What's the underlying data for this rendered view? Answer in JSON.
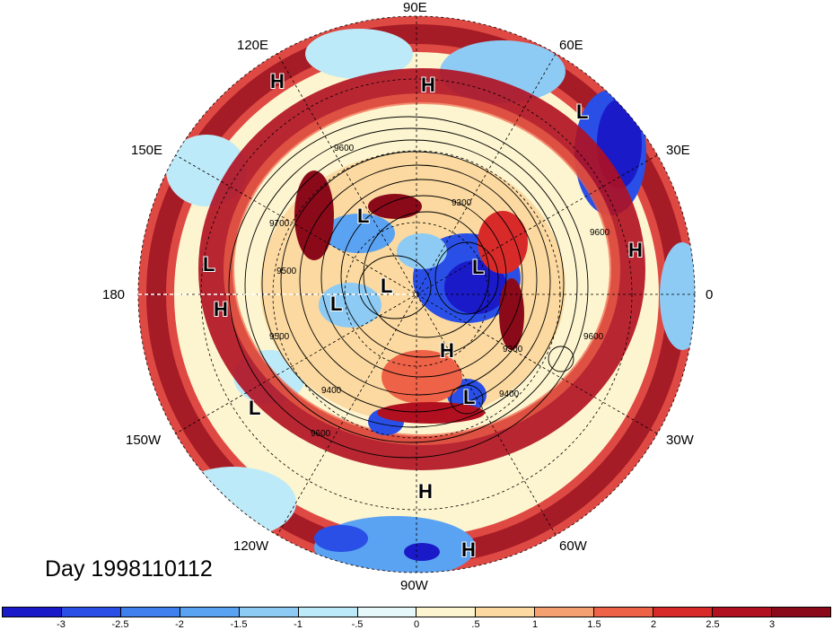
{
  "title": "Day 1998110112",
  "longitude_labels": [
    "90E",
    "60E",
    "30E",
    "0",
    "30W",
    "60W",
    "90W",
    "120W",
    "150W",
    "180",
    "150E",
    "120E"
  ],
  "pressure_systems": [
    {
      "label": "H"
    },
    {
      "label": "H"
    },
    {
      "label": "L"
    },
    {
      "label": "L"
    },
    {
      "label": "H"
    },
    {
      "label": "L"
    },
    {
      "label": "H"
    },
    {
      "label": "L"
    },
    {
      "label": "L"
    },
    {
      "label": "L"
    },
    {
      "label": "L"
    },
    {
      "label": "H"
    },
    {
      "label": "L"
    },
    {
      "label": "H"
    },
    {
      "label": "H"
    }
  ],
  "contour_labels": [
    "9600",
    "9300",
    "9700",
    "9500",
    "9500",
    "9400",
    "9600",
    "9300",
    "9400",
    "9600",
    "9600"
  ],
  "colorbar": {
    "ticks": [
      "-3",
      "-2.5",
      "-2",
      "-1.5",
      "-1",
      "-.5",
      "0",
      ".5",
      "1",
      "1.5",
      "2",
      "2.5",
      "3"
    ],
    "colors": [
      "#1a1ac8",
      "#2a4fe6",
      "#3f7fee",
      "#5aa2f2",
      "#8dcbf5",
      "#bdeaf8",
      "#e6f8fa",
      "#fdf5cf",
      "#fbd9a0",
      "#f4a070",
      "#ee6248",
      "#d92a2a",
      "#b01020",
      "#8b0a1a"
    ]
  }
}
